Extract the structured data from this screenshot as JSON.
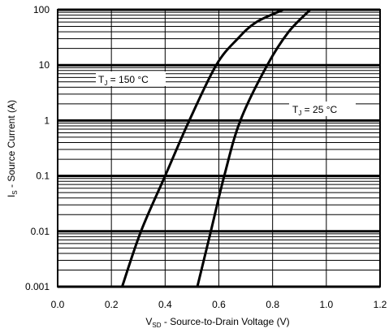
{
  "chart_data": {
    "type": "line",
    "title": "",
    "xlabel": {
      "main": "V",
      "sub": "SD",
      "rest": " - Source-to-Drain Voltage (V)"
    },
    "ylabel": {
      "main": "I",
      "sub": "S",
      "rest": " - Source Current (A)"
    },
    "x_scale": "linear",
    "y_scale": "log",
    "xlim": [
      0.0,
      1.2
    ],
    "ylim": [
      0.001,
      100
    ],
    "x_ticks": [
      "0.0",
      "0.2",
      "0.4",
      "0.6",
      "0.8",
      "1.0",
      "1.2"
    ],
    "y_ticks": [
      "0.001",
      "0.01",
      "0.1",
      "1",
      "10",
      "100"
    ],
    "grid": {
      "major": true,
      "minor_y": true,
      "minor_x": false
    },
    "series": [
      {
        "label_main": "T",
        "label_sub": "J",
        "label_rest": " = 150 °C",
        "points": [
          [
            0.24,
            0.001
          ],
          [
            0.31,
            0.01
          ],
          [
            0.4,
            0.1
          ],
          [
            0.49,
            1
          ],
          [
            0.59,
            10
          ],
          [
            0.67,
            30
          ],
          [
            0.74,
            60
          ],
          [
            0.84,
            100
          ]
        ]
      },
      {
        "label_main": "T",
        "label_sub": "J",
        "label_rest": " = 25 °C",
        "points": [
          [
            0.52,
            0.001
          ],
          [
            0.57,
            0.01
          ],
          [
            0.62,
            0.1
          ],
          [
            0.68,
            1
          ],
          [
            0.78,
            10
          ],
          [
            0.86,
            40
          ],
          [
            0.94,
            100
          ]
        ]
      }
    ]
  }
}
